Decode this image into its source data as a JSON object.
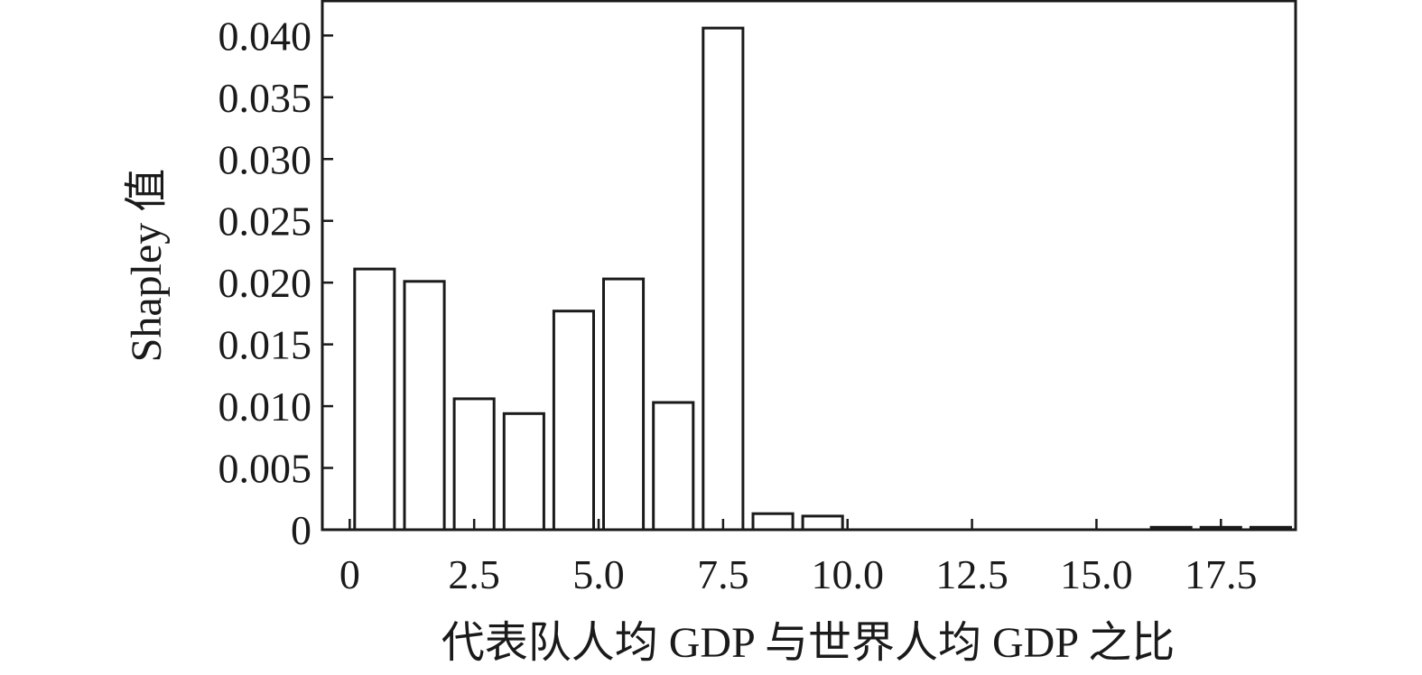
{
  "chart_data": {
    "type": "bar",
    "xlabel": "代表队人均 GDP 与世界人均 GDP 之比",
    "ylabel": "Shapley 值",
    "xlim": [
      -0.55,
      19.0
    ],
    "ylim": [
      0,
      0.0428
    ],
    "bar_width": 0.8,
    "x_ticks": [
      {
        "value": 0,
        "label": "0"
      },
      {
        "value": 2.5,
        "label": "2.5"
      },
      {
        "value": 5.0,
        "label": "5.0"
      },
      {
        "value": 7.5,
        "label": "7.5"
      },
      {
        "value": 10.0,
        "label": "10.0"
      },
      {
        "value": 12.5,
        "label": "12.5"
      },
      {
        "value": 15.0,
        "label": "15.0"
      },
      {
        "value": 17.5,
        "label": "17.5"
      }
    ],
    "y_ticks": [
      {
        "value": 0,
        "label": "0"
      },
      {
        "value": 0.005,
        "label": "0.005"
      },
      {
        "value": 0.01,
        "label": "0.010"
      },
      {
        "value": 0.015,
        "label": "0.015"
      },
      {
        "value": 0.02,
        "label": "0.020"
      },
      {
        "value": 0.025,
        "label": "0.025"
      },
      {
        "value": 0.03,
        "label": "0.030"
      },
      {
        "value": 0.035,
        "label": "0.035"
      },
      {
        "value": 0.04,
        "label": "0.040"
      }
    ],
    "bars": [
      {
        "x": 0.5,
        "value": 0.0211
      },
      {
        "x": 1.5,
        "value": 0.0201
      },
      {
        "x": 2.5,
        "value": 0.0106
      },
      {
        "x": 3.5,
        "value": 0.0094
      },
      {
        "x": 4.5,
        "value": 0.0177
      },
      {
        "x": 5.5,
        "value": 0.0203
      },
      {
        "x": 6.5,
        "value": 0.0103
      },
      {
        "x": 7.5,
        "value": 0.0406
      },
      {
        "x": 8.5,
        "value": 0.0013
      },
      {
        "x": 9.5,
        "value": 0.0011
      },
      {
        "x": 10.5,
        "value": 0.0
      },
      {
        "x": 11.5,
        "value": 0.0
      },
      {
        "x": 12.5,
        "value": 0.0
      },
      {
        "x": 13.5,
        "value": 0.0
      },
      {
        "x": 14.5,
        "value": 0.0
      },
      {
        "x": 15.5,
        "value": 0.0
      },
      {
        "x": 16.5,
        "value": 0.0002
      },
      {
        "x": 17.5,
        "value": 0.0002
      },
      {
        "x": 18.5,
        "value": 0.0002
      }
    ],
    "grid": false,
    "colors": {
      "bar_fill": "#ffffff",
      "bar_stroke": "#1a1a1a",
      "axis": "#1a1a1a"
    }
  }
}
